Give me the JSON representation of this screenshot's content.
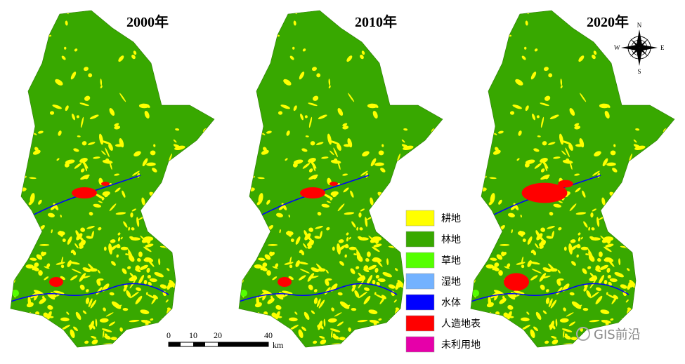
{
  "maps": [
    {
      "title": "2000年"
    },
    {
      "title": "2010年"
    },
    {
      "title": "2020年"
    }
  ],
  "legend": [
    {
      "label": "耕地",
      "color": "#ffff00"
    },
    {
      "label": "林地",
      "color": "#38a800"
    },
    {
      "label": "草地",
      "color": "#55ff00"
    },
    {
      "label": "湿地",
      "color": "#73b2ff"
    },
    {
      "label": "水体",
      "color": "#0000ff"
    },
    {
      "label": "人造地表",
      "color": "#ff0000"
    },
    {
      "label": "未利用地",
      "color": "#e600a9"
    }
  ],
  "scale_bar": {
    "ticks": [
      "0",
      "10",
      "20",
      "40"
    ],
    "unit": "km"
  },
  "compass": {
    "n": "N",
    "s": "S",
    "e": "E",
    "w": "W"
  },
  "watermark": "GIS前沿"
}
